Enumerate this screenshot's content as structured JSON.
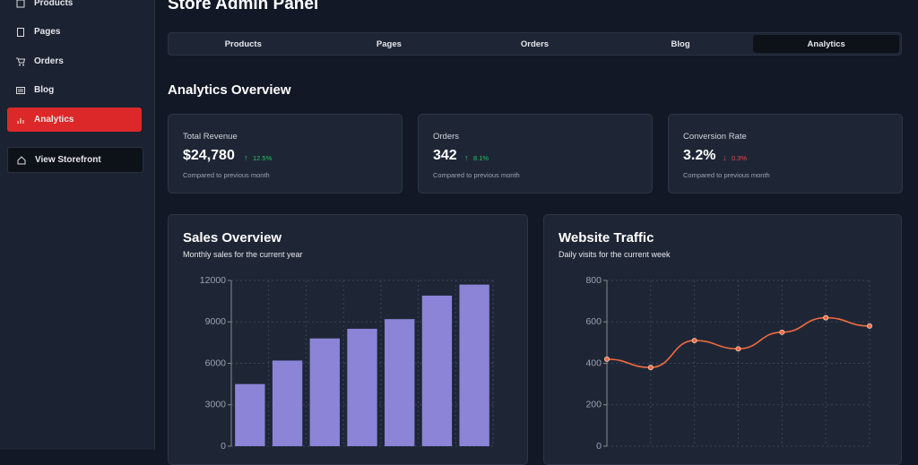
{
  "sidebar": {
    "items": [
      "Products",
      "Pages",
      "Orders",
      "Blog",
      "Analytics"
    ],
    "storefront_button": "View Storefront"
  },
  "header": {
    "title": "Store Admin Panel",
    "tabs": [
      "Products",
      "Pages",
      "Orders",
      "Blog",
      "Analytics"
    ]
  },
  "overview": {
    "title": "Analytics Overview",
    "cards": [
      {
        "label": "Total Revenue",
        "value": "$24,780",
        "change": "12.5%",
        "note": "Compared to previous month"
      },
      {
        "label": "Orders",
        "value": "342",
        "change": "8.1%",
        "note": "Compared to previous month"
      },
      {
        "label": "Conversion Rate",
        "value": "3.2%",
        "change": "0.3%",
        "note": "Compared to previous month"
      }
    ]
  },
  "chart_data": [
    {
      "type": "bar",
      "title": "Sales Overview",
      "subtitle": "Monthly sales for the current year",
      "categories": [
        null,
        null,
        null,
        null,
        null,
        null,
        null
      ],
      "values": [
        4500,
        6200,
        7800,
        8500,
        9200,
        10900,
        11700
      ],
      "color": "#8b84d7",
      "ylim": [
        0,
        12000
      ],
      "yticks": [
        0,
        3000,
        6000,
        9000,
        12000
      ],
      "grid": true
    },
    {
      "type": "line",
      "title": "Website Traffic",
      "subtitle": "Daily visits for the current week",
      "categories": [
        null,
        null,
        null,
        null,
        null,
        null,
        null
      ],
      "values": [
        420,
        380,
        510,
        470,
        550,
        620,
        580
      ],
      "color": "#f26b3f",
      "ylim": [
        0,
        800
      ],
      "yticks": [
        0,
        200,
        400,
        600,
        800
      ],
      "grid": true
    }
  ]
}
